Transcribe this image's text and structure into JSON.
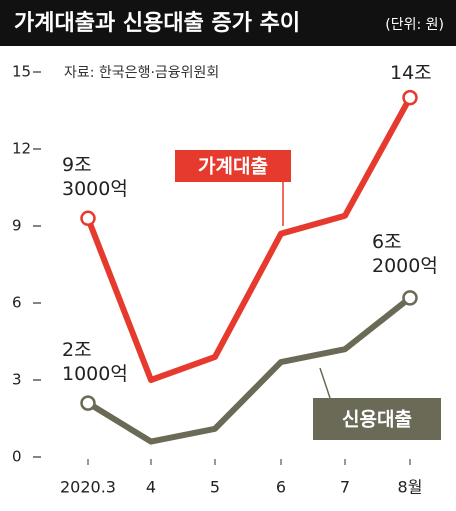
{
  "chart_data": {
    "type": "line",
    "title": "가계대출과 신용대출 증가 추이",
    "unit": "(단위: 원)",
    "source": "자료: 한국은행·금융위원회",
    "categories": [
      "2020.3",
      "4",
      "5",
      "6",
      "7",
      "8월"
    ],
    "series": [
      {
        "name": "가계대출",
        "color": "#e63a2e",
        "values": [
          9.3,
          3.0,
          3.9,
          8.7,
          9.4,
          14
        ],
        "value_labels": [
          "9조\n3000억",
          null,
          null,
          null,
          null,
          "14조"
        ]
      },
      {
        "name": "신용대출",
        "color": "#6b6a57",
        "values": [
          2.1,
          0.6,
          1.1,
          3.7,
          4.2,
          6.2
        ],
        "value_labels": [
          "2조\n1000억",
          null,
          null,
          null,
          null,
          "6조\n2000억"
        ]
      }
    ],
    "ylim": [
      0,
      15
    ],
    "yticks": [
      0,
      3,
      6,
      9,
      12,
      15
    ]
  }
}
